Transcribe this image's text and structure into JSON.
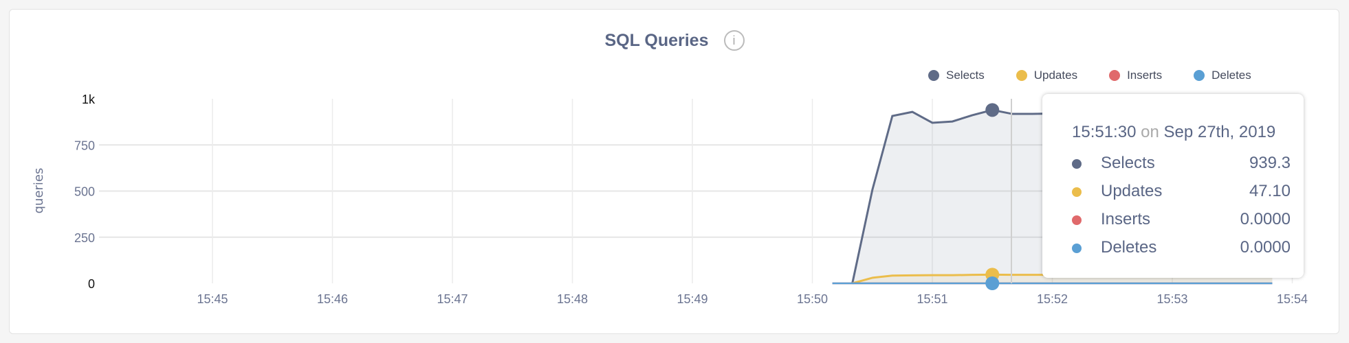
{
  "title": "SQL Queries",
  "info_icon": "info-icon",
  "legend": [
    {
      "label": "Selects",
      "color": "#5f6b87"
    },
    {
      "label": "Updates",
      "color": "#ebbd4b"
    },
    {
      "label": "Inserts",
      "color": "#e0696b"
    },
    {
      "label": "Deletes",
      "color": "#5a9fd4"
    }
  ],
  "tooltip": {
    "time": "15:51:30",
    "on": "on",
    "date": "Sep 27th, 2019",
    "rows": [
      {
        "label": "Selects",
        "value": "939.3",
        "color": "#5f6b87"
      },
      {
        "label": "Updates",
        "value": "47.10",
        "color": "#ebbd4b"
      },
      {
        "label": "Inserts",
        "value": "0.0000",
        "color": "#e0696b"
      },
      {
        "label": "Deletes",
        "value": "0.0000",
        "color": "#5a9fd4"
      }
    ]
  },
  "chart_data": {
    "type": "area",
    "title": "SQL Queries",
    "ylabel": "queries",
    "xlabel": "",
    "ylim": [
      0,
      1000
    ],
    "yticks": [
      "0",
      "250",
      "500",
      "750",
      "1k"
    ],
    "xticks": [
      "15:45",
      "15:46",
      "15:47",
      "15:48",
      "15:49",
      "15:50",
      "15:51",
      "15:52",
      "15:53",
      "15:54"
    ],
    "x": [
      "15:50:10",
      "15:50:20",
      "15:50:30",
      "15:50:40",
      "15:50:50",
      "15:51:00",
      "15:51:10",
      "15:51:20",
      "15:51:30",
      "15:51:40",
      "15:51:50",
      "15:52:00",
      "15:52:10",
      "15:52:20",
      "15:52:30",
      "15:52:40",
      "15:52:50",
      "15:53:00",
      "15:53:10",
      "15:53:20",
      "15:53:30",
      "15:53:40",
      "15:53:50"
    ],
    "series": [
      {
        "name": "Selects",
        "color": "#5f6b87",
        "values": [
          null,
          0,
          506,
          907,
          929,
          870,
          877,
          911,
          939.3,
          918,
          918,
          920,
          925,
          915,
          920,
          922,
          930,
          925,
          920,
          925,
          930,
          928,
          925
        ]
      },
      {
        "name": "Updates",
        "color": "#ebbd4b",
        "values": [
          null,
          0,
          30,
          42,
          43,
          44,
          44,
          46,
          47.1,
          46,
          46,
          46,
          46,
          46,
          46,
          46,
          46,
          46,
          46,
          46,
          46,
          46,
          46
        ]
      },
      {
        "name": "Inserts",
        "color": "#e0696b",
        "values": [
          0,
          0,
          0,
          0,
          0,
          0,
          0,
          0,
          0,
          0,
          0,
          0,
          0,
          0,
          0,
          0,
          0,
          0,
          0,
          0,
          0,
          0,
          0
        ]
      },
      {
        "name": "Deletes",
        "color": "#5a9fd4",
        "values": [
          0,
          0,
          0,
          0,
          0,
          0,
          0,
          0,
          0,
          0,
          0,
          0,
          0,
          0,
          0,
          0,
          0,
          0,
          0,
          0,
          0,
          0,
          0
        ]
      }
    ],
    "highlight_x": "15:51:30",
    "grid": true,
    "legend_position": "top-right"
  }
}
